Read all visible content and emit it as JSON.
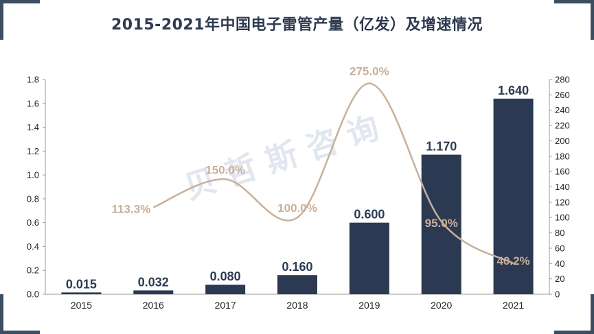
{
  "title": "2015-2021年中国电子雷管产量（亿发）及增速情况",
  "watermark": "贝 哲 斯 咨 询",
  "colors": {
    "bar": "#2b3a52",
    "line": "#c8b09a",
    "frame": "#3d4e63"
  },
  "chart_data": {
    "type": "bar",
    "categories": [
      "2015",
      "2016",
      "2017",
      "2018",
      "2019",
      "2020",
      "2021"
    ],
    "series": [
      {
        "values": [
          0.015,
          0.032,
          0.08,
          0.16,
          0.6,
          1.17,
          1.64
        ],
        "labels": [
          "0.015",
          "0.032",
          "0.080",
          "0.160",
          "0.600",
          "1.170",
          "1.640"
        ],
        "axis": "left",
        "type": "bar"
      },
      {
        "values": [
          null,
          113.3,
          150.0,
          100.0,
          275.0,
          95.0,
          40.2
        ],
        "labels": [
          "",
          "113.3%",
          "150.0%",
          "100.0%",
          "275.0%",
          "95.0%",
          "40.2%"
        ],
        "axis": "right",
        "type": "line"
      }
    ],
    "left_axis": {
      "ylim": [
        0,
        1.8
      ],
      "ticks": [
        "0.0",
        "0.2",
        "0.4",
        "0.6",
        "0.8",
        "1.0",
        "1.2",
        "1.4",
        "1.6",
        "1.8"
      ]
    },
    "right_axis": {
      "ylim": [
        0,
        280
      ],
      "ticks": [
        "0",
        "20",
        "40",
        "60",
        "80",
        "100",
        "120",
        "140",
        "160",
        "180",
        "200",
        "220",
        "240",
        "260",
        "280"
      ]
    },
    "grid": false,
    "legend": "none"
  }
}
